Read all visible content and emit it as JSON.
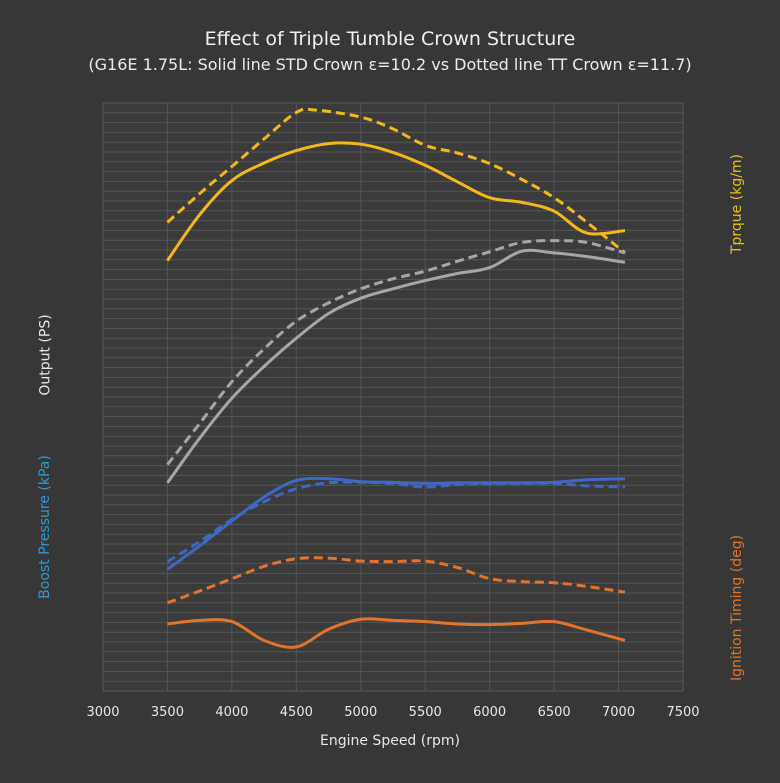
{
  "chart_data": {
    "type": "line",
    "title": "Effect of Triple Tumble Crown Structure",
    "subtitle": "(G16E 1.75L: Solid line STD Crown ε=10.2 vs Dotted line TT Crown ε=11.7)",
    "xlabel": "Engine Speed (rpm)",
    "xlim": [
      3000,
      7500
    ],
    "x_ticks": [
      3000,
      3500,
      4000,
      4500,
      5000,
      5500,
      6000,
      6500,
      7000,
      7500
    ],
    "grid": true,
    "axis_labels": {
      "output": "Output (PS)",
      "torque": "Tprque (kg/m)",
      "boost": "Boost Pressure (kPa)",
      "ignition": "Ignition Timing (deg)"
    },
    "colors": {
      "torque": "#f4b71c",
      "output": "#a6a6a6",
      "boost": "#3f68c4",
      "ignition": "#e2742c",
      "torque_label": "#e8c11a",
      "boost_label": "#2f9ad6",
      "ignition_label": "#e2742c",
      "output_label": "#e8e8e8"
    },
    "y_scale": "relative position within plot area (0 = bottom, 100 = top); no y tick values shown",
    "series": [
      {
        "key": "torque_std",
        "style": "solid",
        "color_key": "torque",
        "x": [
          3500,
          3750,
          4000,
          4250,
          4500,
          4750,
          5000,
          5250,
          5500,
          5750,
          6000,
          6250,
          6500,
          6750,
          7050
        ],
        "y": [
          73.2,
          81,
          86.8,
          89.8,
          91.9,
          93.1,
          93.0,
          91.6,
          89.4,
          86.6,
          83.9,
          83.1,
          81.6,
          77.9,
          78.3
        ]
      },
      {
        "key": "torque_tt",
        "style": "dashed",
        "color_key": "torque",
        "x": [
          3500,
          3750,
          4000,
          4250,
          4500,
          4650,
          5000,
          5250,
          5500,
          5750,
          6000,
          6250,
          6500,
          6750,
          7050
        ],
        "y": [
          79.7,
          84.6,
          89.2,
          93.9,
          98.4,
          98.8,
          97.6,
          95.6,
          92.8,
          91.5,
          89.7,
          87.0,
          83.9,
          79.8,
          74.5
        ]
      },
      {
        "key": "output_std",
        "style": "solid",
        "color_key": "output",
        "x": [
          3500,
          3750,
          4000,
          4250,
          4500,
          4750,
          5000,
          5250,
          5500,
          5750,
          6000,
          6250,
          6500,
          6750,
          7050
        ],
        "y": [
          35.4,
          43,
          49.8,
          55.2,
          60.0,
          64.2,
          66.8,
          68.4,
          69.8,
          71.0,
          72.0,
          74.8,
          74.5,
          73.9,
          72.9
        ]
      },
      {
        "key": "output_tt",
        "style": "dashed",
        "color_key": "output",
        "x": [
          3500,
          3750,
          4000,
          4250,
          4500,
          4750,
          5000,
          5250,
          5500,
          5750,
          6000,
          6250,
          6500,
          6750,
          7050
        ],
        "y": [
          38.5,
          45.5,
          52.6,
          58.2,
          62.9,
          66.0,
          68.4,
          70.1,
          71.4,
          73.1,
          74.7,
          76.3,
          76.6,
          76.3,
          74.5
        ]
      },
      {
        "key": "boost_std",
        "style": "solid",
        "color_key": "boost",
        "x": [
          3500,
          3750,
          4000,
          4250,
          4500,
          4750,
          5000,
          5250,
          5500,
          5750,
          6000,
          6250,
          6500,
          6750,
          7050
        ],
        "y": [
          20.7,
          24.7,
          28.9,
          33.0,
          35.8,
          36.1,
          35.6,
          35.5,
          35.3,
          35.4,
          35.4,
          35.4,
          35.5,
          35.9,
          36.1
        ]
      },
      {
        "key": "boost_tt",
        "style": "dashed",
        "color_key": "boost",
        "x": [
          3500,
          3750,
          4000,
          4250,
          4500,
          4750,
          5000,
          5250,
          5500,
          5750,
          6000,
          6250,
          6500,
          6750,
          7050
        ],
        "y": [
          22.0,
          25.4,
          29.2,
          32.2,
          34.4,
          35.4,
          35.5,
          35.3,
          34.7,
          35.1,
          35.3,
          35.3,
          35.3,
          34.9,
          34.7
        ]
      },
      {
        "key": "ignition_std",
        "style": "solid",
        "color_key": "ignition",
        "x": [
          3500,
          3750,
          4000,
          4250,
          4500,
          4750,
          5000,
          5250,
          5500,
          5750,
          6000,
          6250,
          6500,
          6750,
          7050
        ],
        "y": [
          11.4,
          12.0,
          11.8,
          8.6,
          7.5,
          10.5,
          12.2,
          12.0,
          11.8,
          11.4,
          11.3,
          11.5,
          11.8,
          10.4,
          8.6
        ]
      },
      {
        "key": "ignition_tt",
        "style": "dashed",
        "color_key": "ignition",
        "x": [
          3500,
          3750,
          4000,
          4250,
          4500,
          4750,
          5000,
          5250,
          5500,
          5750,
          6000,
          6250,
          6500,
          6750,
          7050
        ],
        "y": [
          15.0,
          17.0,
          19.1,
          21.2,
          22.5,
          22.6,
          22.1,
          22.0,
          22.1,
          21.0,
          19.1,
          18.6,
          18.4,
          17.8,
          16.8
        ]
      }
    ]
  }
}
